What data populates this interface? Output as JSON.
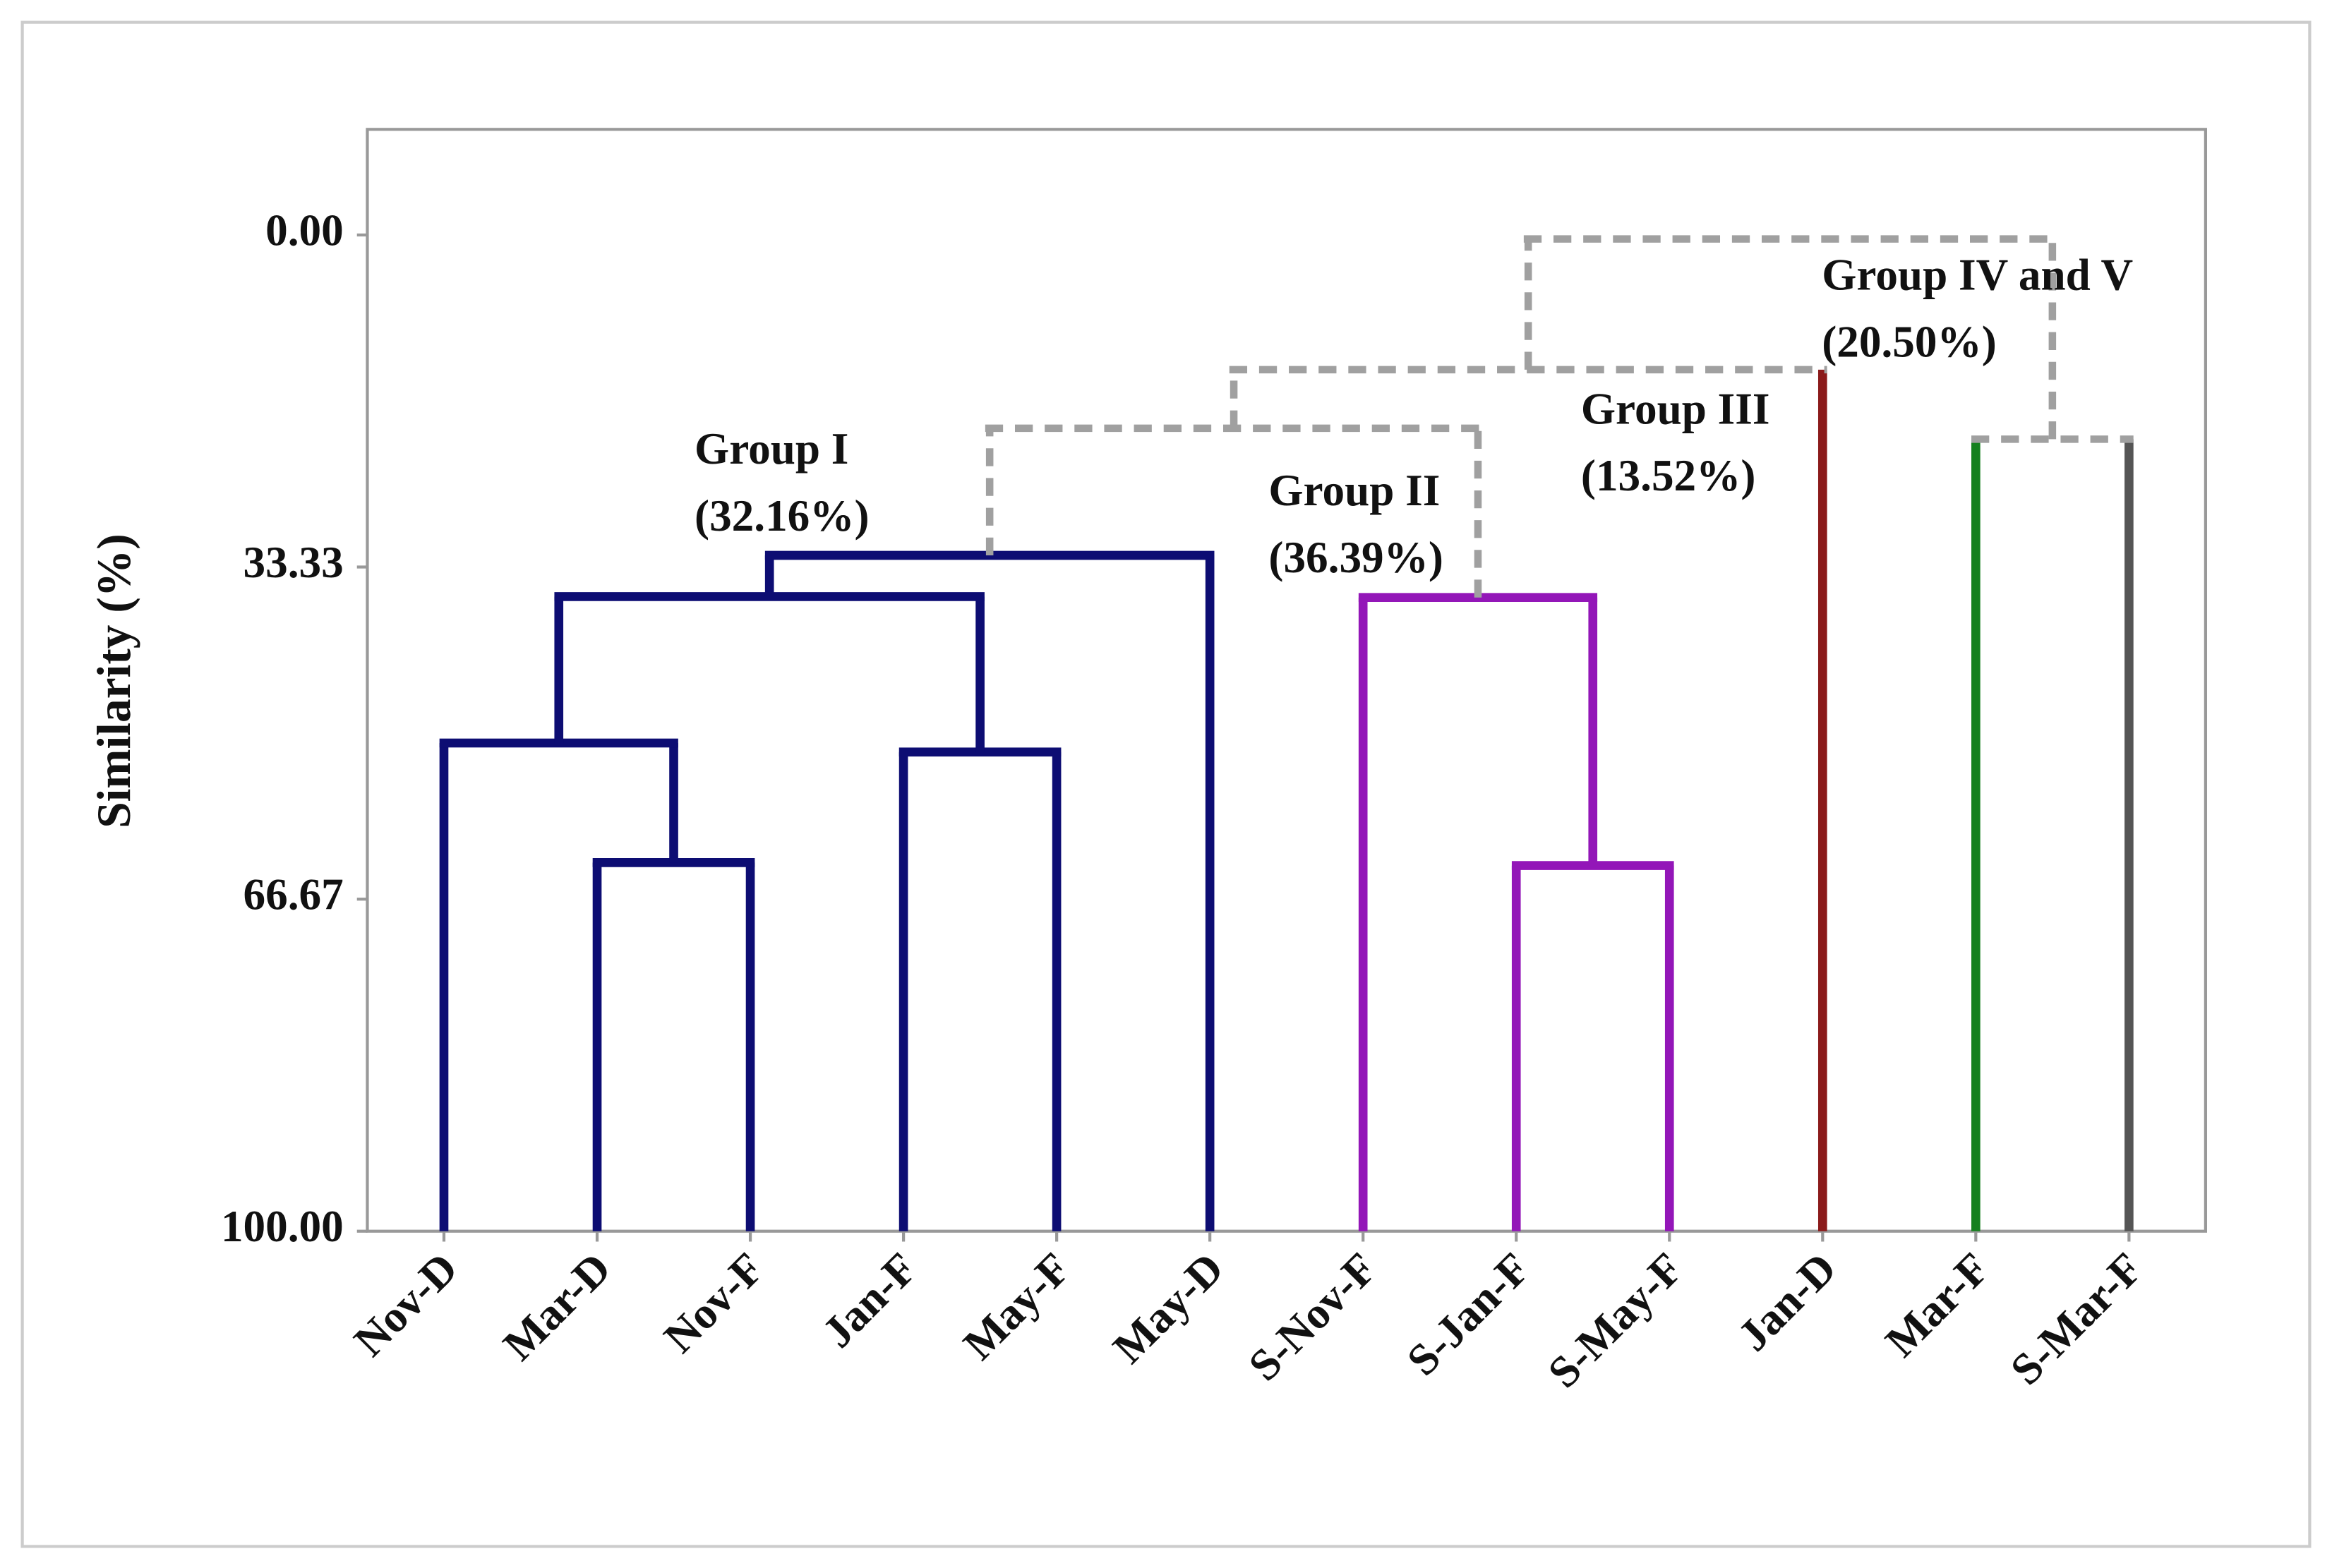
{
  "chart_data": {
    "type": "dendrogram",
    "y_label": "Similarity (%)",
    "categories": [
      "Nov-D",
      "Mar-D",
      "Nov-F",
      "Jan-F",
      "May-F",
      "May-D",
      "S-Nov-F",
      "S-Jan-F",
      "S-May-F",
      "Jan-D",
      "Mar-F",
      "S-Mar-F"
    ],
    "leaf_colors": [
      "#0d0d73",
      "#0d0d73",
      "#0d0d73",
      "#0d0d73",
      "#0d0d73",
      "#0d0d73",
      "#9316b8",
      "#9316b8",
      "#9316b8",
      "#8b1a1a",
      "#15801e",
      "#555555"
    ],
    "links": [
      {
        "children": [
          1,
          2
        ],
        "height": 63.0,
        "color": "#0d0d73",
        "dashed": false
      },
      {
        "children": [
          0,
          12
        ],
        "height": 51.0,
        "color": "#0d0d73",
        "dashed": false
      },
      {
        "children": [
          3,
          4
        ],
        "height": 51.9,
        "color": "#0d0d73",
        "dashed": false
      },
      {
        "children": [
          13,
          14
        ],
        "height": 36.3,
        "color": "#0d0d73",
        "dashed": false
      },
      {
        "children": [
          15,
          5
        ],
        "height": 32.16,
        "color": "#0d0d73",
        "dashed": false
      },
      {
        "children": [
          7,
          8
        ],
        "height": 63.3,
        "color": "#9316b8",
        "dashed": false
      },
      {
        "children": [
          6,
          17
        ],
        "height": 36.39,
        "color": "#9316b8",
        "dashed": false
      },
      {
        "children": [
          16,
          18
        ],
        "height": 19.4,
        "color": "#a0a0a0",
        "dashed": true
      },
      {
        "children": [
          19,
          9
        ],
        "height": 13.52,
        "color": "#a0a0a0",
        "dashed": true
      },
      {
        "children": [
          10,
          11
        ],
        "height": 20.5,
        "color": "#a0a0a0",
        "dashed": true
      },
      {
        "children": [
          20,
          21
        ],
        "height": 0.4,
        "color": "#a0a0a0",
        "dashed": true
      }
    ],
    "ylim": [
      100,
      -10.6
    ],
    "yticks": [
      {
        "value": 0,
        "label": "0.00"
      },
      {
        "value": 33.33,
        "label": "33.33"
      },
      {
        "value": 66.67,
        "label": "66.67"
      },
      {
        "value": 100,
        "label": "100.00"
      }
    ],
    "annotations": [
      [
        "Group I",
        "(32.16%)"
      ],
      [
        "Group II",
        "(36.39%)"
      ],
      [
        "Group III",
        "(13.52%)"
      ],
      [
        "Group IV and V",
        "(20.50%)"
      ]
    ]
  }
}
